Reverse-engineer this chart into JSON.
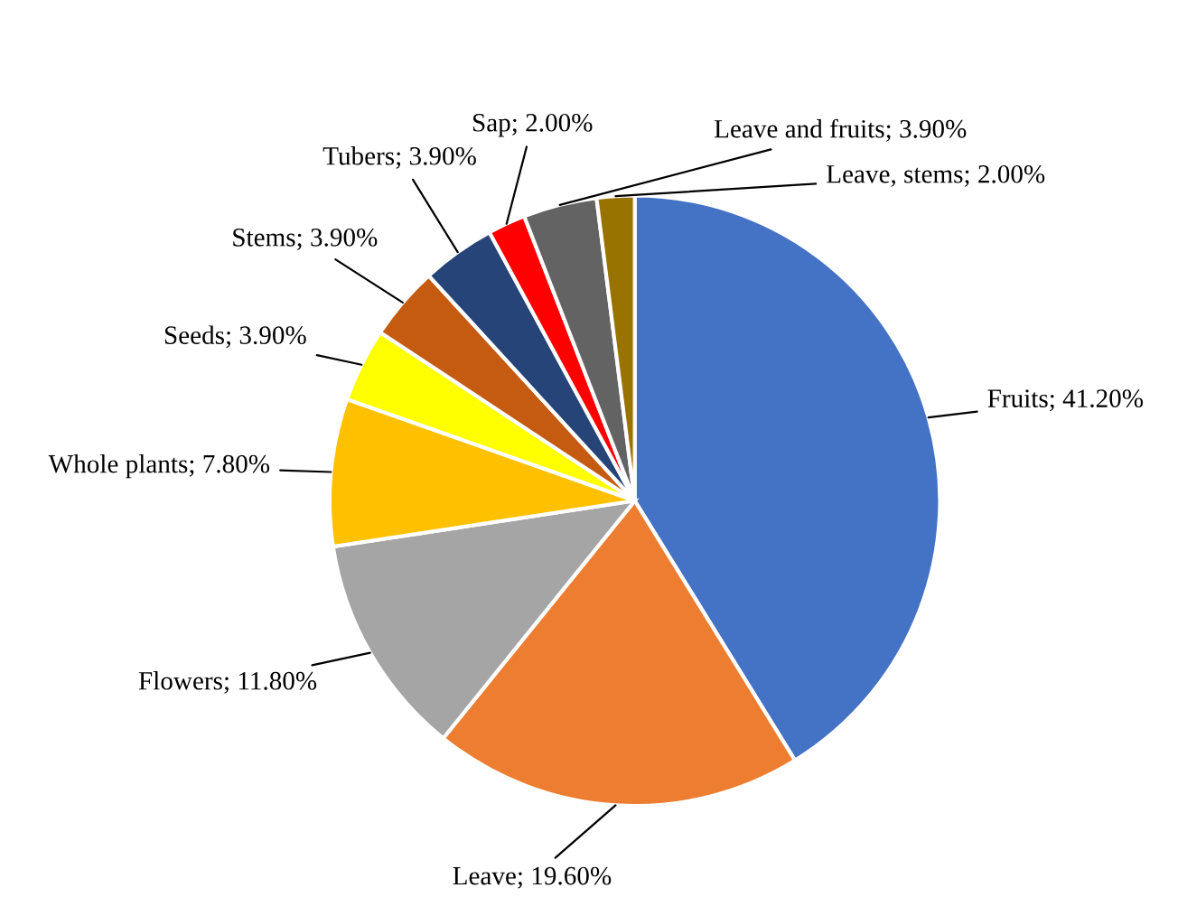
{
  "chart_data": {
    "type": "pie",
    "categories": [
      "Fruits",
      "Leave",
      "Flowers",
      "Whole plants",
      "Seeds",
      "Stems",
      "Tubers",
      "Sap",
      "Leave and fruits",
      "Leave, stems"
    ],
    "values": [
      41.2,
      19.6,
      11.8,
      7.8,
      3.9,
      3.9,
      3.9,
      2.0,
      3.9,
      2.0
    ],
    "value_labels": [
      "41.20%",
      "19.60%",
      "11.80%",
      "7.80%",
      "3.90%",
      "3.90%",
      "3.90%",
      "2.00%",
      "3.90%",
      "2.00%"
    ],
    "colors": [
      "#4472c4",
      "#ed7d31",
      "#a5a5a5",
      "#ffc000",
      "#ffff00",
      "#c55a11",
      "#264478",
      "#ff0000",
      "#636363",
      "#997300"
    ]
  }
}
